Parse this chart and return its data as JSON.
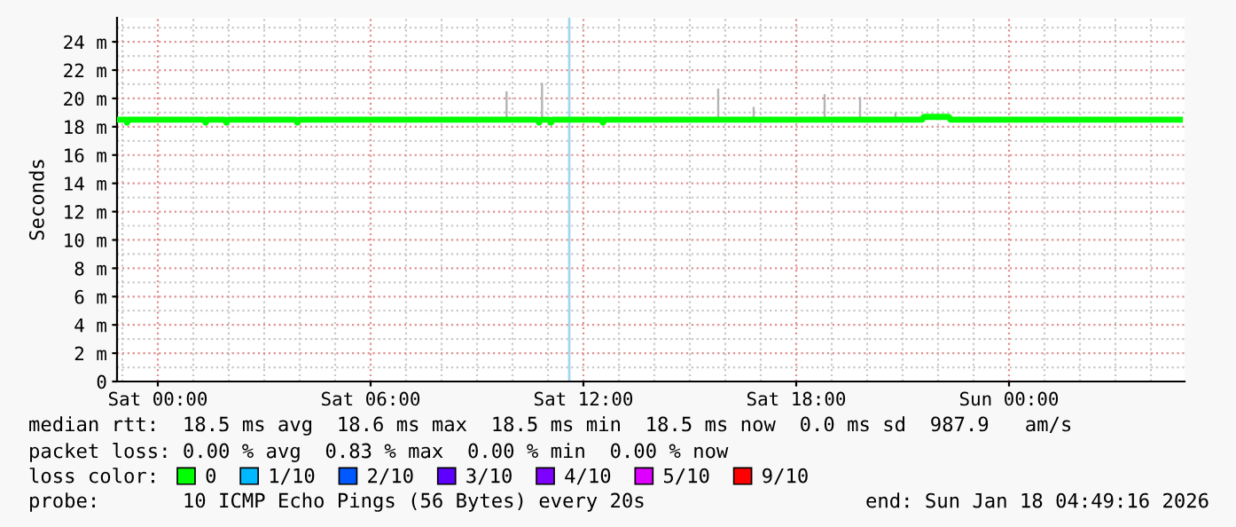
{
  "chart_data": {
    "type": "line",
    "ylabel": "Seconds",
    "xlim": [
      "2026-01-16T22:51",
      "2026-01-18T04:57"
    ],
    "ylim": [
      0,
      25.7
    ],
    "xticks": [
      {
        "value": "2026-01-17T00:00",
        "label": "Sat 00:00"
      },
      {
        "value": "2026-01-17T06:00",
        "label": "Sat 06:00"
      },
      {
        "value": "2026-01-17T12:00",
        "label": "Sat 12:00"
      },
      {
        "value": "2026-01-17T18:00",
        "label": "Sat 18:00"
      },
      {
        "value": "2026-01-18T00:00",
        "label": "Sun 00:00"
      }
    ],
    "yticks": [
      0,
      {
        "value": 2,
        "label": "2 m"
      },
      {
        "value": 4,
        "label": "4 m"
      },
      {
        "value": 6,
        "label": "6 m"
      },
      {
        "value": 8,
        "label": "8 m"
      },
      {
        "value": 10,
        "label": "10 m"
      },
      {
        "value": 12,
        "label": "12 m"
      },
      {
        "value": 14,
        "label": "14 m"
      },
      {
        "value": 16,
        "label": "16 m"
      },
      {
        "value": 18,
        "label": "18 m"
      },
      {
        "value": 20,
        "label": "20 m"
      },
      {
        "value": 22,
        "label": "22 m"
      },
      {
        "value": 24,
        "label": "24 m"
      }
    ],
    "grid": true,
    "legend": "bottom",
    "series": [
      {
        "type": "bar",
        "color": "#b4b4b4",
        "x": [
          "2026-01-17T09:50",
          "2026-01-17T10:50",
          "2026-01-17T15:48",
          "2026-01-17T16:48",
          "2026-01-17T18:48",
          "2026-01-17T19:48",
          "2026-01-17T20:48"
        ],
        "base": [
          18.5,
          18.5,
          18.5,
          18.5,
          18.5,
          18.5,
          18.5
        ],
        "values": [
          2.0,
          2.6,
          2.2,
          0.9,
          1.8,
          1.6,
          0.5
        ]
      },
      {
        "name": "0",
        "color": "#00ff00",
        "x": [
          "2026-01-16T22:54",
          "2026-01-16T23:06",
          "2026-01-16T23:08",
          "2026-01-16T23:10",
          "2026-01-17T01:18",
          "2026-01-17T01:21",
          "2026-01-17T01:24",
          "2026-01-17T01:53",
          "2026-01-17T01:56",
          "2026-01-17T01:59",
          "2026-01-17T03:53",
          "2026-01-17T03:56",
          "2026-01-17T03:59",
          "2026-01-17T10:42",
          "2026-01-17T10:45",
          "2026-01-17T10:48",
          "2026-01-17T11:02",
          "2026-01-17T11:05",
          "2026-01-17T11:08",
          "2026-01-17T12:30",
          "2026-01-17T12:33",
          "2026-01-17T12:36",
          "2026-01-17T21:33",
          "2026-01-17T21:36",
          "2026-01-17T22:18",
          "2026-01-17T22:21",
          "2026-01-18T04:49"
        ],
        "values": [
          18.5,
          18.5,
          18.3,
          18.5,
          18.5,
          18.3,
          18.5,
          18.5,
          18.3,
          18.5,
          18.5,
          18.3,
          18.5,
          18.5,
          18.3,
          18.5,
          18.5,
          18.3,
          18.5,
          18.5,
          18.3,
          18.5,
          18.5,
          18.7,
          18.7,
          18.5,
          18.5
        ]
      },
      {
        "name": "1/10",
        "color": "#00b8ff"
      },
      {
        "name": "2/10",
        "color": "#0059ff"
      },
      {
        "name": "3/10",
        "color": "#5e00ff"
      },
      {
        "name": "4/10",
        "color": "#7e00ff"
      },
      {
        "name": "5/10",
        "color": "#dd00ff"
      },
      {
        "name": "9/10",
        "color": "#ff0000"
      }
    ],
    "ref_lines": [
      {
        "axis": "x",
        "value": "2026-01-17T11:36",
        "color": "#a0d8f0"
      }
    ],
    "annotations": [
      "median rtt:  18.5 ms avg  18.6 ms max  18.5 ms min  18.5 ms now  0.0 ms sd  987.9   am/s",
      "packet loss: 0.00 % avg  0.83 % max  0.00 % min  0.00 % now",
      "loss color:",
      "probe:       10 ICMP Echo Pings (56 Bytes) every 20s",
      "end: Sun Jan 18 04:49:16 2026"
    ]
  }
}
